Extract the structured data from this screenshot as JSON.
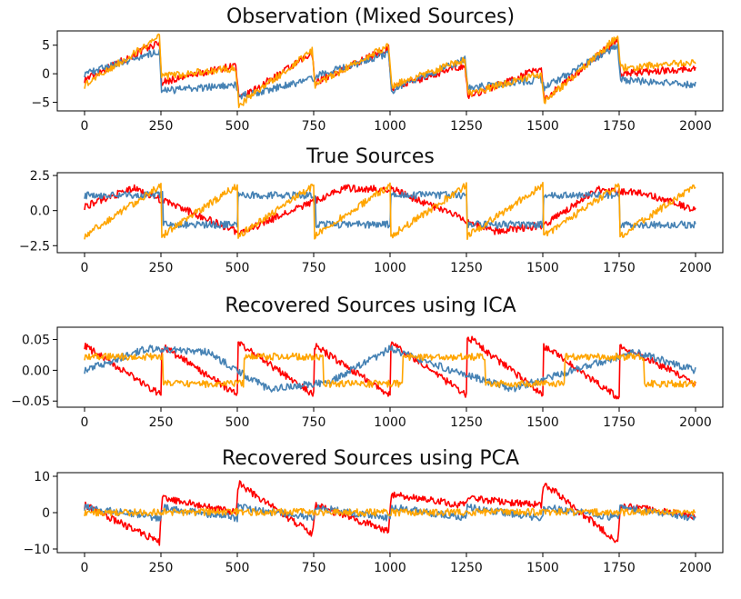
{
  "colors": {
    "red": "#ff0000",
    "blue": "#4682b4",
    "orange": "#ffa500",
    "axis": "#000000"
  },
  "chart_data": [
    {
      "type": "line",
      "title": "Observation (Mixed Sources)",
      "xlim": [
        0,
        2000
      ],
      "ylim": [
        -6.5,
        7.5
      ],
      "x_ticks": [
        0,
        250,
        500,
        750,
        1000,
        1250,
        1500,
        1750,
        2000
      ],
      "y_ticks": [
        -5,
        0,
        5
      ],
      "y_tick_labels": [
        "−5",
        "0",
        "5"
      ],
      "grid": false,
      "series": [
        {
          "color": "red",
          "x": [
            0,
            245,
            252,
            495,
            505,
            745,
            755,
            995,
            1005,
            1245,
            1255,
            1495,
            1505,
            1745,
            1755,
            2000
          ],
          "y": [
            -1,
            5.5,
            -1.5,
            1.5,
            -4.5,
            3.5,
            -1.5,
            4.5,
            -2.5,
            1.5,
            -4,
            1,
            -4.5,
            6,
            0,
            1
          ]
        },
        {
          "color": "blue",
          "x": [
            0,
            245,
            252,
            495,
            505,
            745,
            755,
            995,
            1005,
            1245,
            1255,
            1495,
            1505,
            1745,
            1755,
            2000
          ],
          "y": [
            0,
            4,
            -3,
            -2,
            -4,
            -1,
            -0.5,
            3.5,
            -3,
            2.5,
            -2.5,
            -1,
            -2.5,
            5,
            -1,
            -2
          ]
        },
        {
          "color": "orange",
          "x": [
            0,
            245,
            252,
            495,
            505,
            745,
            755,
            995,
            1005,
            1245,
            1255,
            1495,
            1505,
            1745,
            1755,
            2000
          ],
          "y": [
            -2,
            6.5,
            -0.5,
            1,
            -5.5,
            4,
            -2,
            5,
            -2,
            2.5,
            -3.5,
            0,
            -5,
            6.5,
            1,
            2
          ]
        }
      ]
    },
    {
      "type": "line",
      "title": "True Sources",
      "xlim": [
        0,
        2000
      ],
      "ylim": [
        -3,
        2.7
      ],
      "x_ticks": [
        0,
        250,
        500,
        750,
        1000,
        1250,
        1500,
        1750,
        2000
      ],
      "y_ticks": [
        -2.5,
        0,
        2.5
      ],
      "y_tick_labels": [
        "−2.5",
        "0.0",
        "2.5"
      ],
      "grid": false,
      "series": [
        {
          "color": "red",
          "x": [
            0,
            160,
            335,
            510,
            680,
            850,
            1010,
            1175,
            1340,
            1510,
            1675,
            1840,
            2000
          ],
          "y": [
            0.3,
            1.6,
            0,
            -1.6,
            0,
            1.6,
            1.5,
            0,
            -1.5,
            -1,
            1.5,
            1.2,
            0
          ]
        },
        {
          "color": "blue",
          "x": [
            0,
            255,
            258,
            500,
            503,
            755,
            758,
            1000,
            1003,
            1250,
            1253,
            1500,
            1503,
            1750,
            1753,
            2000
          ],
          "y": [
            1.1,
            1.1,
            -1,
            -1,
            1.1,
            1.1,
            -1,
            -1,
            1.1,
            1.1,
            -1,
            -1,
            1.1,
            1.1,
            -1,
            -1
          ]
        },
        {
          "color": "orange",
          "x": [
            0,
            250,
            253,
            500,
            503,
            750,
            753,
            1000,
            1003,
            1250,
            1253,
            1500,
            1503,
            1750,
            1753,
            2000
          ],
          "y": [
            -1.8,
            1.8,
            -1.8,
            1.8,
            -1.8,
            1.8,
            -1.8,
            1.8,
            -1.8,
            1.8,
            -1.8,
            1.8,
            -1.8,
            1.8,
            -1.8,
            1.8
          ]
        }
      ]
    },
    {
      "type": "line",
      "title": "Recovered Sources using ICA",
      "xlim": [
        0,
        2000
      ],
      "ylim": [
        -0.06,
        0.07
      ],
      "x_ticks": [
        0,
        250,
        500,
        750,
        1000,
        1250,
        1500,
        1750,
        2000
      ],
      "y_ticks": [
        -0.05,
        0,
        0.05
      ],
      "y_tick_labels": [
        "−0.05",
        "0.00",
        "0.05"
      ],
      "grid": false,
      "series": [
        {
          "color": "red",
          "x": [
            0,
            250,
            253,
            500,
            503,
            750,
            753,
            1000,
            1003,
            1250,
            1253,
            1500,
            1503,
            1750,
            1753,
            2000
          ],
          "y": [
            0.04,
            -0.04,
            0.04,
            -0.04,
            0.045,
            -0.04,
            0.04,
            -0.04,
            0.045,
            -0.04,
            0.055,
            -0.04,
            0.04,
            -0.045,
            0.04,
            -0.02
          ]
        },
        {
          "color": "blue",
          "x": [
            0,
            200,
            400,
            600,
            800,
            1000,
            1200,
            1400,
            1600,
            1800,
            2000
          ],
          "y": [
            0,
            0.035,
            0.03,
            -0.03,
            -0.02,
            0.035,
            0,
            -0.03,
            0,
            0.03,
            0
          ]
        },
        {
          "color": "orange",
          "x": [
            0,
            255,
            258,
            520,
            523,
            780,
            783,
            1040,
            1043,
            1310,
            1313,
            1570,
            1573,
            1830,
            1833,
            2000
          ],
          "y": [
            0.022,
            0.022,
            -0.022,
            -0.022,
            0.022,
            0.022,
            -0.022,
            -0.022,
            0.022,
            0.022,
            -0.022,
            -0.022,
            0.022,
            0.022,
            -0.022,
            -0.022
          ]
        }
      ]
    },
    {
      "type": "line",
      "title": "Recovered Sources using PCA",
      "xlim": [
        0,
        2000
      ],
      "ylim": [
        -11,
        11
      ],
      "x_ticks": [
        0,
        250,
        500,
        750,
        1000,
        1250,
        1500,
        1750,
        2000
      ],
      "y_ticks": [
        -10,
        0,
        10
      ],
      "y_tick_labels": [
        "−10",
        "0",
        "10"
      ],
      "grid": false,
      "series": [
        {
          "color": "red",
          "x": [
            0,
            245,
            255,
            495,
            505,
            745,
            755,
            995,
            1005,
            1245,
            1255,
            1495,
            1505,
            1745,
            1755,
            2000
          ],
          "y": [
            2,
            -8,
            4,
            0,
            8,
            -6,
            2,
            -5,
            5,
            2,
            4,
            2,
            8,
            -8,
            2,
            -1
          ]
        },
        {
          "color": "blue",
          "x": [
            0,
            250,
            253,
            500,
            503,
            750,
            753,
            1000,
            1003,
            1250,
            1253,
            1500,
            1503,
            1750,
            1753,
            2000
          ],
          "y": [
            1.5,
            -1.5,
            1.5,
            -1.5,
            1.5,
            -1.5,
            1.5,
            -1.5,
            1.5,
            -1.5,
            1.5,
            -1.5,
            1.5,
            -1.5,
            1.5,
            -1.5
          ]
        },
        {
          "color": "orange",
          "x": [
            0,
            500,
            1000,
            1500,
            2000
          ],
          "y": [
            0,
            0.2,
            0,
            0.2,
            0
          ]
        }
      ]
    }
  ]
}
